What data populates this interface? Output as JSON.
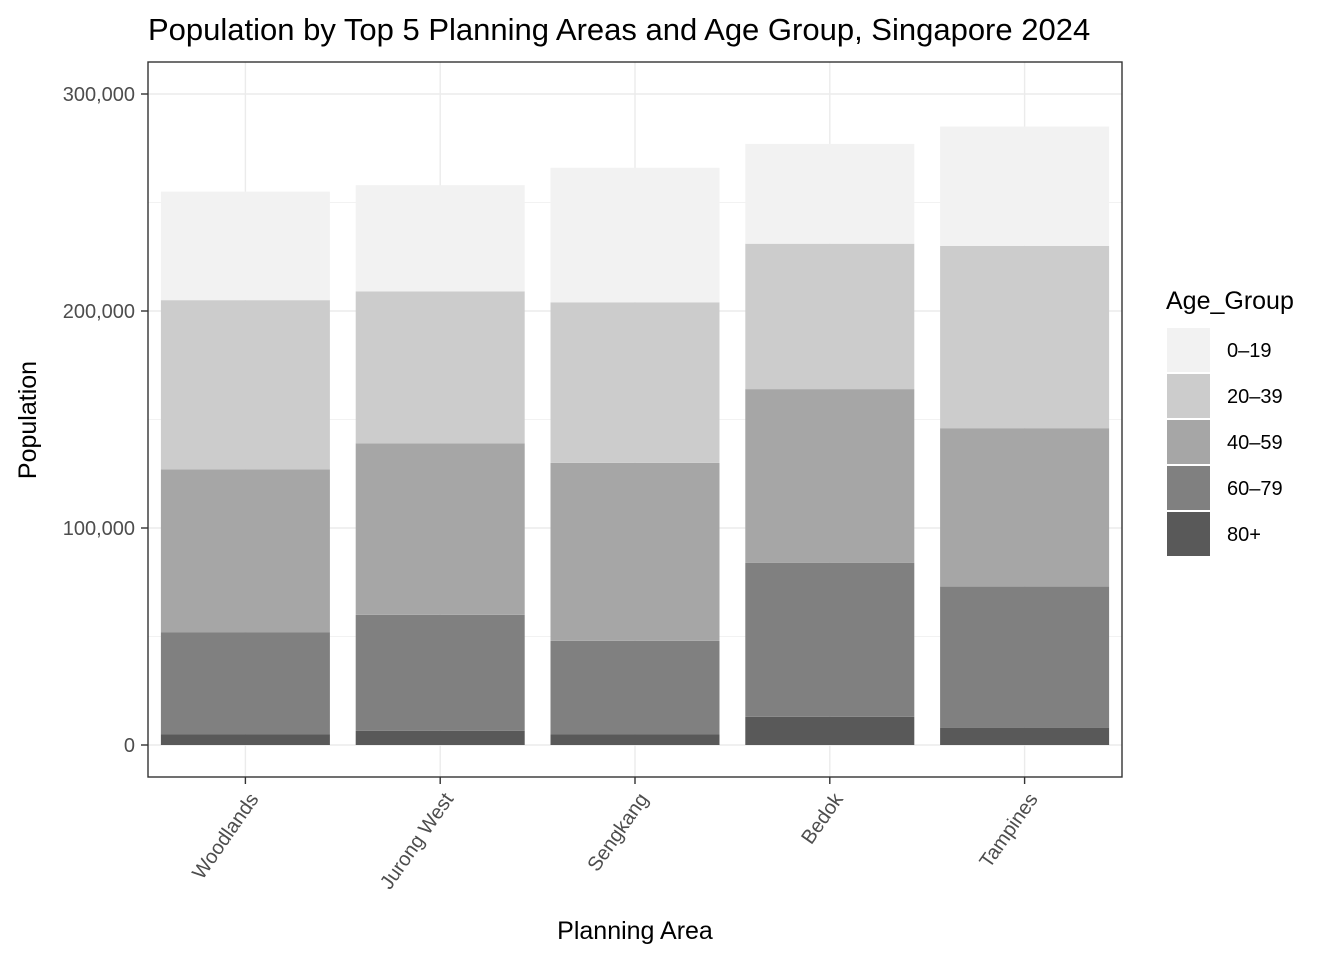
{
  "chart_data": {
    "type": "bar",
    "stacked": true,
    "title": "Population by Top 5 Planning Areas and Age Group, Singapore 2024",
    "xlabel": "Planning Area",
    "ylabel": "Population",
    "ylim": [
      -15000,
      315000
    ],
    "yticks": [
      0,
      100000,
      200000,
      300000
    ],
    "ytick_labels": [
      "0",
      "100,000",
      "200,000",
      "300,000"
    ],
    "grid": true,
    "categories": [
      "Woodlands",
      "Jurong West",
      "Sengkang",
      "Bedok",
      "Tampines"
    ],
    "legend": {
      "title": "Age_Group",
      "position": "right"
    },
    "series": [
      {
        "name": "80+",
        "color": "#595959",
        "values": [
          5000,
          6500,
          5000,
          13000,
          8000
        ]
      },
      {
        "name": "60–79",
        "color": "#808080",
        "values": [
          47000,
          53500,
          43000,
          71000,
          65000
        ]
      },
      {
        "name": "40–59",
        "color": "#a6a6a6",
        "values": [
          75000,
          79000,
          82000,
          80000,
          73000
        ]
      },
      {
        "name": "20–39",
        "color": "#cccccc",
        "values": [
          78000,
          70000,
          74000,
          67000,
          84000
        ]
      },
      {
        "name": "0–19",
        "color": "#f2f2f2",
        "values": [
          50000,
          49000,
          62000,
          46000,
          55000
        ]
      }
    ]
  }
}
